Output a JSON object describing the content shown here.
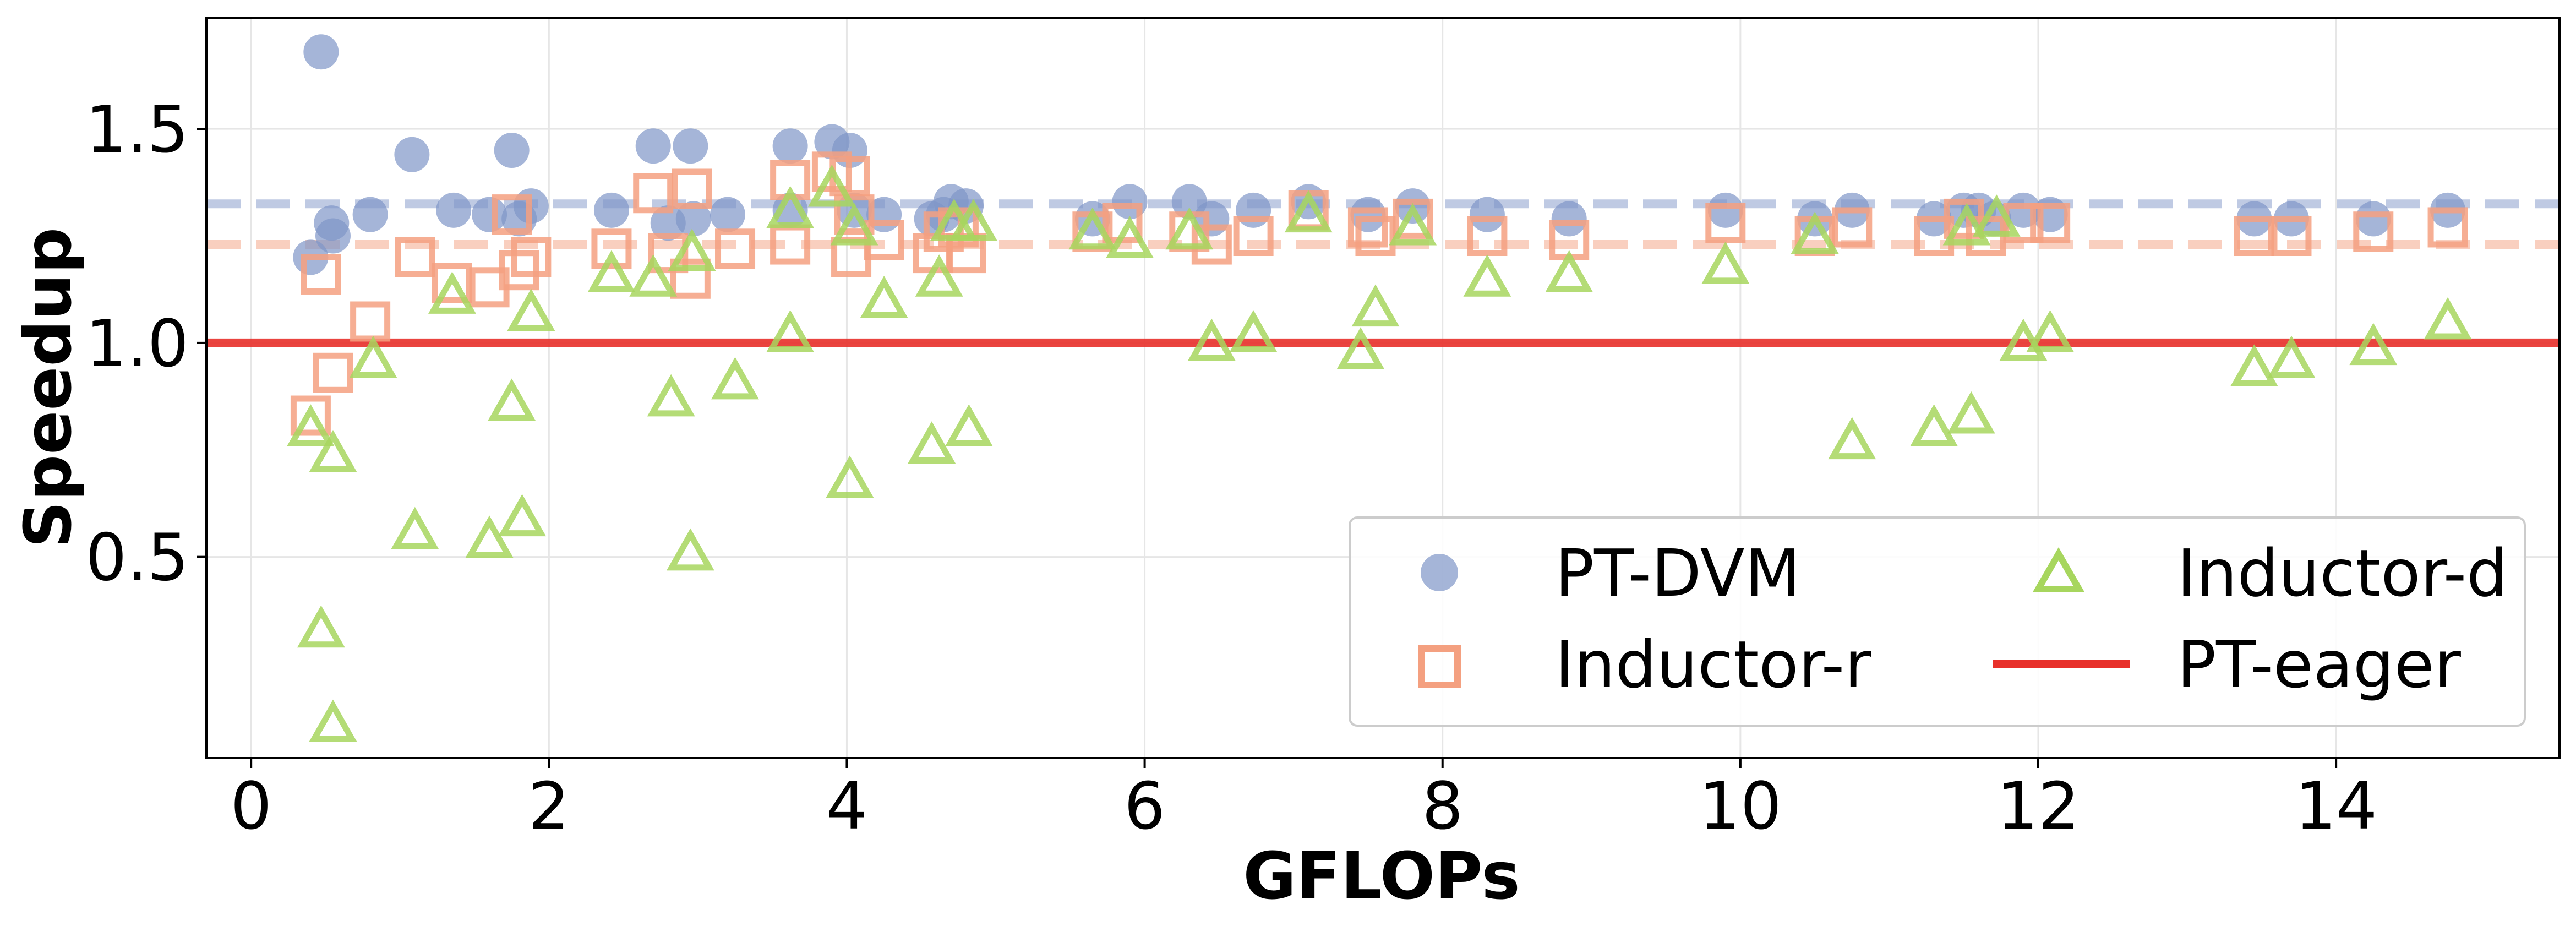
{
  "chart_data": {
    "type": "scatter",
    "title": "",
    "xlabel": "GFLOPs",
    "ylabel": "Speedup",
    "xlim": [
      -0.3,
      15.5
    ],
    "ylim": [
      0.03,
      1.76
    ],
    "x_ticks": [
      0,
      2,
      4,
      6,
      8,
      10,
      12,
      14
    ],
    "y_ticks": [
      0.5,
      1.0,
      1.5
    ],
    "x_tick_labels": [
      "0",
      "2",
      "4",
      "6",
      "8",
      "10",
      "12",
      "14"
    ],
    "y_tick_labels": [
      "0.5",
      "1.0",
      "1.5"
    ],
    "grid": true,
    "legend": {
      "placement": "lower-right",
      "columns": 2,
      "entries": [
        "PT-DVM",
        "Inductor-d",
        "Inductor-r",
        "PT-eager"
      ]
    },
    "reference_lines": [
      {
        "name": "PT-DVM",
        "y": 1.325,
        "style": "dashed",
        "color": "#7f96c8"
      },
      {
        "name": "Inductor-r",
        "y": 1.23,
        "style": "dashed",
        "color": "#f4a080"
      },
      {
        "name": "PT-eager",
        "y": 1.0,
        "style": "solid",
        "color": "#e8302a"
      }
    ],
    "series": [
      {
        "name": "PT-DVM",
        "marker": "circle",
        "color": "#7f96c8",
        "points": [
          [
            0.47,
            1.68
          ],
          [
            0.4,
            1.2
          ],
          [
            0.55,
            1.25
          ],
          [
            0.54,
            1.28
          ],
          [
            0.8,
            1.3
          ],
          [
            1.08,
            1.44
          ],
          [
            1.36,
            1.31
          ],
          [
            1.6,
            1.3
          ],
          [
            1.75,
            1.45
          ],
          [
            1.8,
            1.29
          ],
          [
            1.88,
            1.32
          ],
          [
            2.42,
            1.31
          ],
          [
            2.7,
            1.46
          ],
          [
            2.8,
            1.28
          ],
          [
            2.95,
            1.46
          ],
          [
            2.97,
            1.29
          ],
          [
            3.2,
            1.3
          ],
          [
            3.62,
            1.46
          ],
          [
            3.62,
            1.31
          ],
          [
            3.9,
            1.47
          ],
          [
            4.02,
            1.45
          ],
          [
            4.05,
            1.31
          ],
          [
            4.25,
            1.3
          ],
          [
            4.57,
            1.29
          ],
          [
            4.65,
            1.3
          ],
          [
            4.7,
            1.33
          ],
          [
            4.8,
            1.32
          ],
          [
            5.65,
            1.29
          ],
          [
            5.9,
            1.33
          ],
          [
            6.3,
            1.33
          ],
          [
            6.45,
            1.29
          ],
          [
            6.73,
            1.31
          ],
          [
            7.1,
            1.33
          ],
          [
            7.5,
            1.3
          ],
          [
            7.8,
            1.32
          ],
          [
            8.3,
            1.3
          ],
          [
            8.85,
            1.29
          ],
          [
            9.9,
            1.31
          ],
          [
            10.5,
            1.29
          ],
          [
            10.75,
            1.31
          ],
          [
            11.3,
            1.29
          ],
          [
            11.5,
            1.31
          ],
          [
            11.6,
            1.31
          ],
          [
            11.7,
            1.29
          ],
          [
            11.9,
            1.31
          ],
          [
            12.08,
            1.3
          ],
          [
            13.45,
            1.29
          ],
          [
            13.7,
            1.29
          ],
          [
            14.25,
            1.29
          ],
          [
            14.75,
            1.31
          ]
        ]
      },
      {
        "name": "Inductor-r",
        "marker": "square",
        "color": "#f4a080",
        "points": [
          [
            0.4,
            0.83
          ],
          [
            0.47,
            1.16
          ],
          [
            0.55,
            0.93
          ],
          [
            0.8,
            1.05
          ],
          [
            1.1,
            1.2
          ],
          [
            1.35,
            1.14
          ],
          [
            1.6,
            1.13
          ],
          [
            1.75,
            1.3
          ],
          [
            1.8,
            1.17
          ],
          [
            1.88,
            1.2
          ],
          [
            2.42,
            1.22
          ],
          [
            2.7,
            1.35
          ],
          [
            2.8,
            1.21
          ],
          [
            2.95,
            1.15
          ],
          [
            2.96,
            1.36
          ],
          [
            3.25,
            1.22
          ],
          [
            3.62,
            1.38
          ],
          [
            3.62,
            1.23
          ],
          [
            3.9,
            1.4
          ],
          [
            4.02,
            1.39
          ],
          [
            4.03,
            1.2
          ],
          [
            4.05,
            1.3
          ],
          [
            4.25,
            1.24
          ],
          [
            4.58,
            1.21
          ],
          [
            4.65,
            1.26
          ],
          [
            4.75,
            1.27
          ],
          [
            4.8,
            1.21
          ],
          [
            5.65,
            1.26
          ],
          [
            5.85,
            1.28
          ],
          [
            6.3,
            1.26
          ],
          [
            6.45,
            1.23
          ],
          [
            6.73,
            1.25
          ],
          [
            7.1,
            1.31
          ],
          [
            7.5,
            1.27
          ],
          [
            7.55,
            1.25
          ],
          [
            7.8,
            1.29
          ],
          [
            8.3,
            1.25
          ],
          [
            8.85,
            1.24
          ],
          [
            9.9,
            1.28
          ],
          [
            10.5,
            1.25
          ],
          [
            10.75,
            1.27
          ],
          [
            11.3,
            1.25
          ],
          [
            11.5,
            1.29
          ],
          [
            11.65,
            1.25
          ],
          [
            11.9,
            1.28
          ],
          [
            12.08,
            1.28
          ],
          [
            13.45,
            1.25
          ],
          [
            13.7,
            1.25
          ],
          [
            14.25,
            1.26
          ],
          [
            14.75,
            1.27
          ]
        ]
      },
      {
        "name": "Inductor-d",
        "marker": "triangle",
        "color": "#a7d65e",
        "points": [
          [
            0.4,
            0.8
          ],
          [
            0.47,
            0.33
          ],
          [
            0.55,
            0.74
          ],
          [
            0.55,
            0.11
          ],
          [
            0.82,
            0.96
          ],
          [
            1.1,
            0.56
          ],
          [
            1.35,
            1.11
          ],
          [
            1.6,
            0.54
          ],
          [
            1.75,
            0.86
          ],
          [
            1.82,
            0.59
          ],
          [
            1.88,
            1.07
          ],
          [
            2.42,
            1.16
          ],
          [
            2.7,
            1.15
          ],
          [
            2.82,
            0.87
          ],
          [
            2.95,
            0.51
          ],
          [
            2.96,
            1.21
          ],
          [
            3.25,
            0.91
          ],
          [
            3.62,
            1.31
          ],
          [
            3.62,
            1.02
          ],
          [
            3.9,
            1.36
          ],
          [
            4.02,
            0.68
          ],
          [
            4.05,
            1.27
          ],
          [
            4.25,
            1.1
          ],
          [
            4.57,
            0.76
          ],
          [
            4.62,
            1.15
          ],
          [
            4.72,
            1.28
          ],
          [
            4.82,
            0.8
          ],
          [
            4.85,
            1.28
          ],
          [
            5.65,
            1.26
          ],
          [
            5.9,
            1.24
          ],
          [
            6.3,
            1.26
          ],
          [
            6.45,
            1.0
          ],
          [
            6.73,
            1.02
          ],
          [
            7.1,
            1.3
          ],
          [
            7.45,
            0.98
          ],
          [
            7.55,
            1.08
          ],
          [
            7.8,
            1.27
          ],
          [
            8.3,
            1.15
          ],
          [
            8.85,
            1.16
          ],
          [
            9.9,
            1.18
          ],
          [
            10.5,
            1.25
          ],
          [
            10.75,
            0.77
          ],
          [
            11.3,
            0.8
          ],
          [
            11.52,
            1.27
          ],
          [
            11.55,
            0.83
          ],
          [
            11.72,
            1.29
          ],
          [
            11.9,
            1.0
          ],
          [
            12.08,
            1.02
          ],
          [
            13.45,
            0.94
          ],
          [
            13.7,
            0.96
          ],
          [
            14.25,
            0.99
          ],
          [
            14.75,
            1.05
          ]
        ]
      }
    ]
  }
}
